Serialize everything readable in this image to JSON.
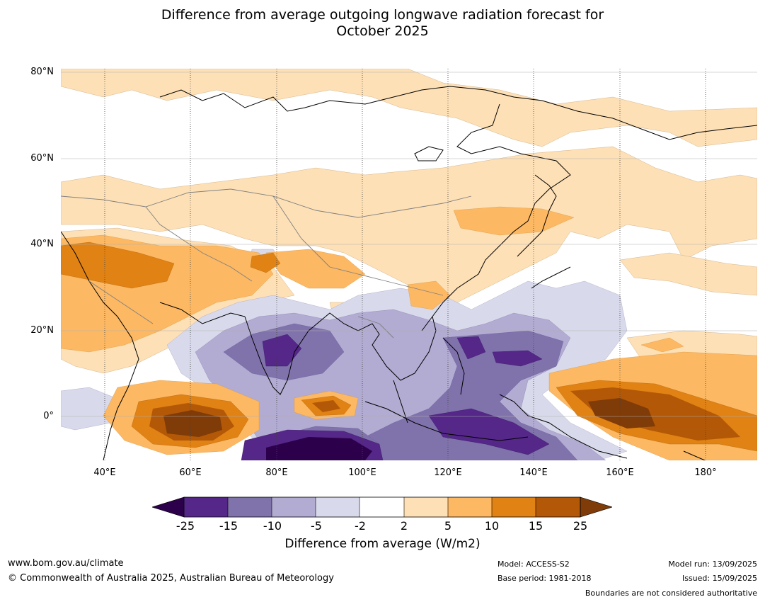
{
  "title": {
    "line1": "Difference from average outgoing longwave radiation forecast for",
    "line2": "October 2025"
  },
  "axes": {
    "lat_labels": [
      "80°N",
      "60°N",
      "40°N",
      "20°N",
      "0°"
    ],
    "lon_labels": [
      "40°E",
      "60°E",
      "80°E",
      "100°E",
      "120°E",
      "140°E",
      "160°E",
      "180°"
    ]
  },
  "colorbar": {
    "ticks": [
      "-25",
      "-15",
      "-10",
      "-5",
      "-2",
      "2",
      "5",
      "10",
      "15",
      "25"
    ],
    "colors": {
      "lt_neg25": "#2d004b",
      "neg25_neg15": "#542788",
      "neg15_neg10": "#8073ac",
      "neg10_neg5": "#b2abd2",
      "neg5_neg2": "#d8daeb",
      "neg2_2": "#ffffff",
      "2_5": "#fee0b6",
      "5_10": "#fdb863",
      "10_15": "#e08214",
      "15_25": "#b35806",
      "gt_25": "#7f3b08"
    },
    "label": "Difference from average (W/m2)"
  },
  "footer": {
    "website": "www.bom.gov.au/climate",
    "copyright": "© Commonwealth of Australia 2025, Australian Bureau of Meteorology",
    "model": "Model: ACCESS-S2",
    "base_period": "Base period: 1981-2018",
    "model_run": "Model run: 13/09/2025",
    "issued": "Issued: 15/09/2025",
    "disclaimer": "Boundaries are not considered authoritative"
  }
}
